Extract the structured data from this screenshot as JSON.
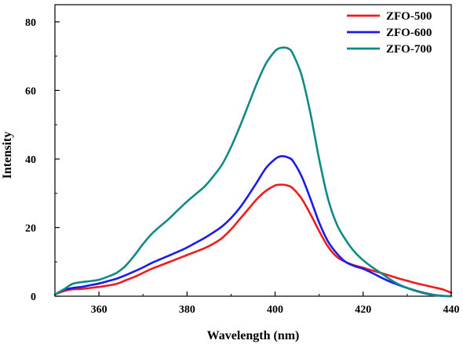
{
  "chart_data": {
    "type": "line",
    "xlabel": "Wavelength (nm)",
    "ylabel": "Intensity",
    "xlim": [
      350,
      440
    ],
    "ylim": [
      0,
      85
    ],
    "x_ticks": [
      360,
      380,
      400,
      420,
      440
    ],
    "y_ticks": [
      0,
      20,
      40,
      60,
      80
    ],
    "grid": false,
    "legend_position": "top-right",
    "x": [
      350,
      352,
      354,
      356,
      358,
      360,
      362,
      364,
      366,
      368,
      370,
      372,
      374,
      376,
      378,
      380,
      382,
      384,
      386,
      388,
      390,
      392,
      394,
      396,
      398,
      400,
      401,
      402,
      403,
      404,
      406,
      408,
      410,
      412,
      414,
      416,
      418,
      420,
      422,
      424,
      426,
      428,
      430,
      432,
      434,
      436,
      438,
      440
    ],
    "series": [
      {
        "name": "ZFO-500",
        "color": "#ee1c1c",
        "values": [
          0.5,
          1.5,
          2.0,
          2.1,
          2.4,
          2.7,
          3.1,
          3.6,
          4.6,
          5.6,
          6.8,
          8.0,
          9.0,
          10.0,
          11.0,
          12.0,
          13.0,
          14.0,
          15.3,
          17.0,
          19.5,
          22.5,
          25.5,
          28.5,
          30.8,
          32.3,
          32.5,
          32.5,
          32.2,
          31.5,
          28.5,
          24.0,
          19.0,
          14.5,
          11.5,
          10.0,
          9.0,
          8.3,
          7.5,
          6.8,
          6.0,
          5.2,
          4.5,
          3.8,
          3.2,
          2.6,
          2.0,
          1.0
        ]
      },
      {
        "name": "ZFO-600",
        "color": "#1a1aee",
        "values": [
          0.5,
          1.8,
          2.4,
          2.7,
          3.2,
          3.7,
          4.4,
          5.1,
          6.1,
          7.2,
          8.4,
          9.7,
          10.8,
          11.9,
          13.0,
          14.2,
          15.6,
          17.0,
          18.6,
          20.4,
          22.8,
          25.8,
          29.5,
          33.5,
          37.5,
          40.0,
          40.7,
          40.8,
          40.4,
          39.5,
          35.0,
          28.5,
          21.5,
          16.0,
          12.5,
          10.0,
          8.8,
          8.0,
          6.8,
          5.5,
          4.3,
          3.3,
          2.4,
          1.6,
          0.9,
          0.4,
          0.1,
          0.0
        ]
      },
      {
        "name": "ZFO-700",
        "color": "#0f8a87",
        "values": [
          0.5,
          2.0,
          3.6,
          4.1,
          4.4,
          4.8,
          5.7,
          6.8,
          8.8,
          11.8,
          15.2,
          18.2,
          20.5,
          22.7,
          25.2,
          27.6,
          29.8,
          32.0,
          35.0,
          38.5,
          43.5,
          49.5,
          56.0,
          62.5,
          68.0,
          71.5,
          72.3,
          72.5,
          72.2,
          70.8,
          64.5,
          53.5,
          40.0,
          28.5,
          21.0,
          16.5,
          13.0,
          10.5,
          8.5,
          6.8,
          5.0,
          3.5,
          2.4,
          1.5,
          0.8,
          0.3,
          0.1,
          0.0
        ]
      }
    ]
  }
}
